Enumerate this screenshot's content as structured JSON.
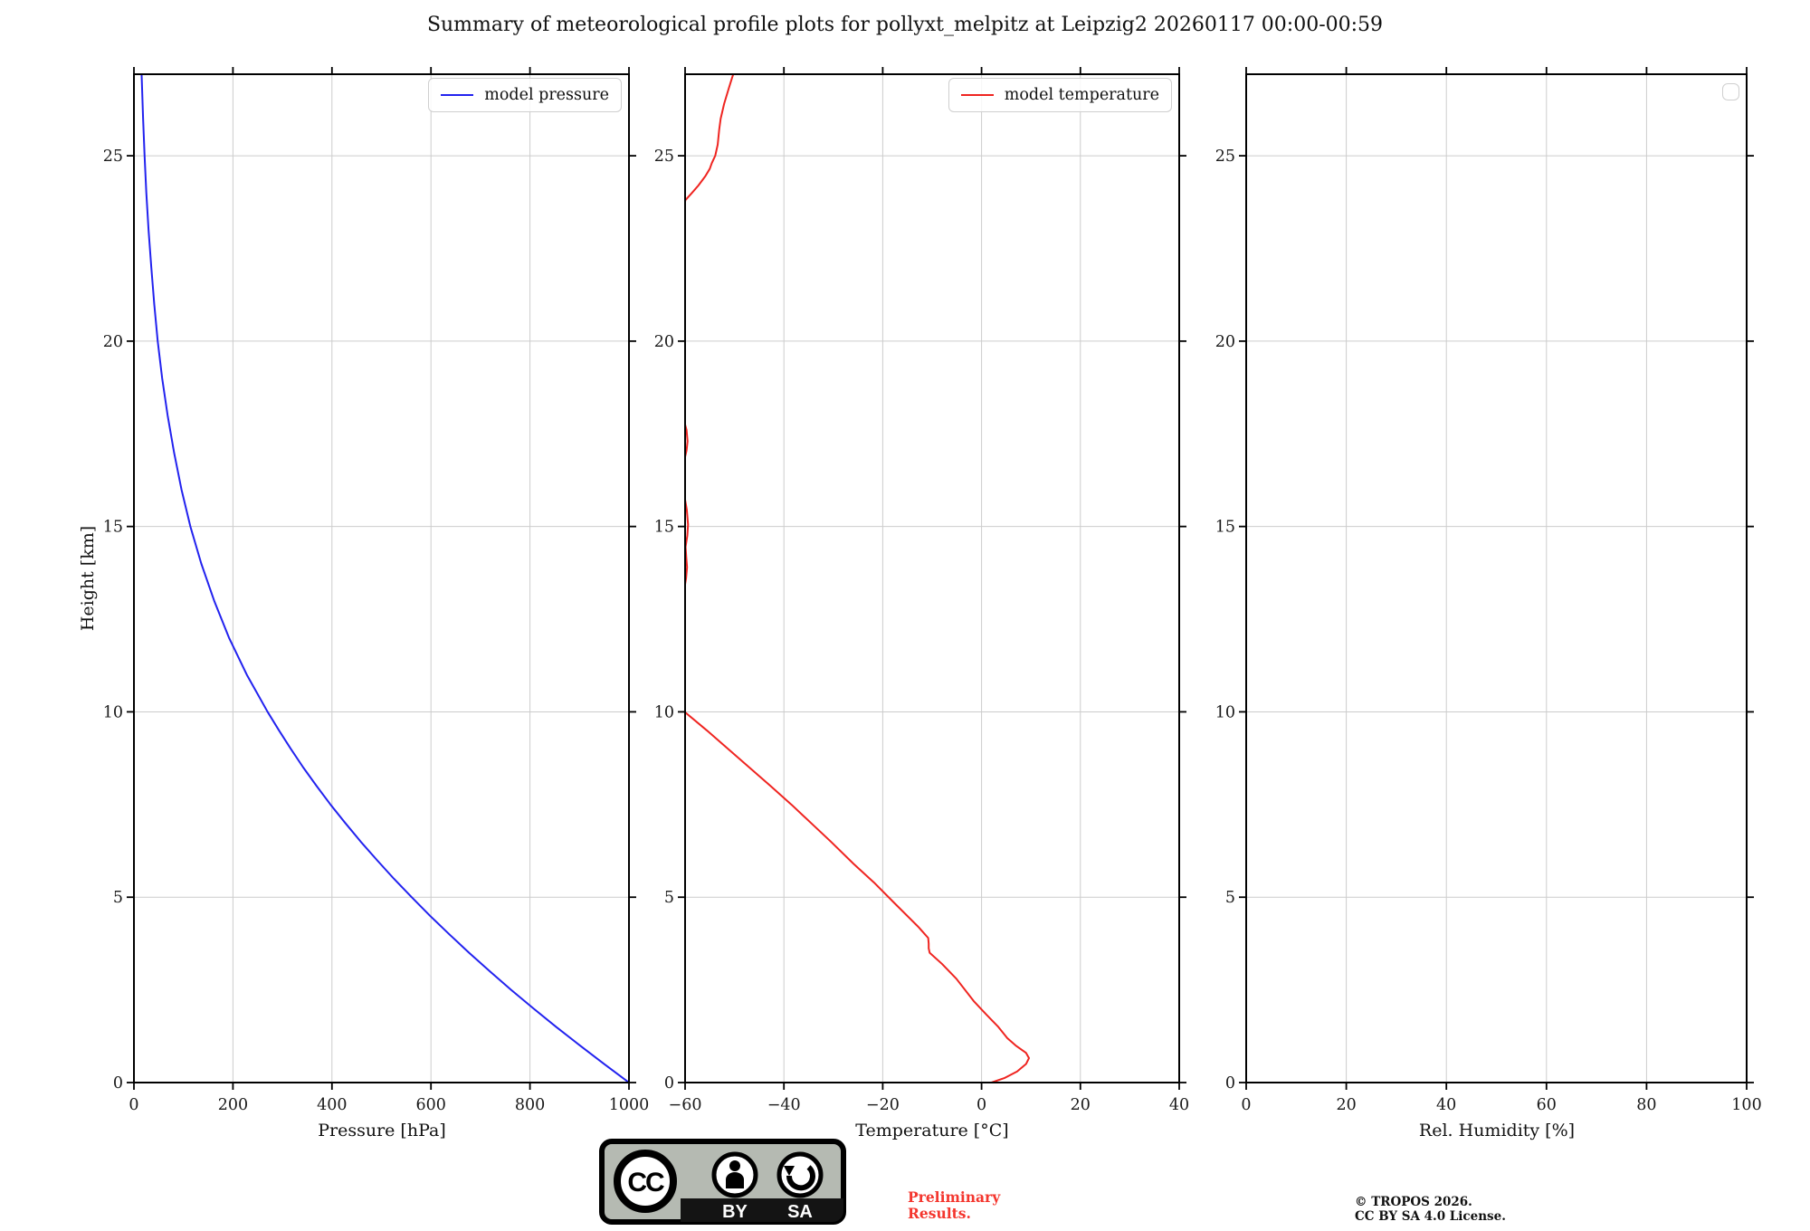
{
  "title": "Summary of meteorological profile plots for pollyxt_melpitz at Leipzig2 20260117 00:00-00:59",
  "colors": {
    "pressure_line": "#2222ef",
    "temperature_line": "#ef2420",
    "grid": "#cccccc",
    "spine": "#000000",
    "tick_label": "#1a1a1a",
    "preliminary_text": "#f4362e",
    "badge_gray": "#b5bab2",
    "badge_black": "#141414"
  },
  "footer": {
    "badge": {
      "cc": "CC",
      "by": "BY",
      "sa": "SA"
    },
    "preliminary_line1": "Preliminary",
    "preliminary_line2": "Results.",
    "copyright_line1": "© TROPOS 2026.",
    "copyright_line2": "CC BY SA 4.0 License."
  },
  "chart_data": [
    {
      "type": "line",
      "xlabel": "Pressure [hPa]",
      "ylabel": "Height [km]",
      "xlim": [
        0,
        1000
      ],
      "ylim": [
        0,
        27.2
      ],
      "xticks": [
        0,
        200,
        400,
        600,
        800,
        1000
      ],
      "yticks": [
        0,
        5,
        10,
        15,
        20,
        25
      ],
      "grid": true,
      "legend_position": "upper right",
      "legend": [
        {
          "label": "model pressure",
          "color": "#2222ef"
        }
      ],
      "series": [
        {
          "name": "model pressure",
          "color": "#2222ef",
          "height_km": [
            0,
            0.5,
            1,
            1.5,
            2,
            2.5,
            3,
            3.5,
            4,
            4.5,
            5,
            5.5,
            6,
            6.5,
            7,
            7.5,
            8,
            8.5,
            9,
            9.5,
            10,
            11,
            12,
            13,
            14,
            15,
            16,
            17,
            18,
            19,
            20,
            21,
            22,
            23,
            24,
            25,
            26,
            27,
            27.3
          ],
          "values": [
            1000,
            950,
            901,
            853,
            807,
            762,
            719,
            677,
            637,
            598,
            561,
            525,
            491,
            458,
            427,
            397,
            369,
            342,
            317,
            293,
            270,
            228,
            192,
            162,
            136,
            114,
            96,
            81,
            68,
            57,
            48,
            41,
            35,
            29.5,
            25,
            21.5,
            18.5,
            16,
            15.2
          ]
        }
      ]
    },
    {
      "type": "line",
      "xlabel": "Temperature [°C]",
      "ylabel": "",
      "xlim": [
        -60,
        40
      ],
      "ylim": [
        0,
        27.2
      ],
      "xticks": [
        -60,
        -40,
        -20,
        0,
        20,
        40
      ],
      "yticks": [
        0,
        5,
        10,
        15,
        20,
        25
      ],
      "grid": true,
      "legend_position": "upper right",
      "legend": [
        {
          "label": "model temperature",
          "color": "#ef2420"
        }
      ],
      "series": [
        {
          "name": "model temperature",
          "color": "#ef2420",
          "height_km": [
            0,
            0.12,
            0.3,
            0.5,
            0.66,
            0.8,
            1.0,
            1.2,
            1.5,
            1.83,
            2.2,
            2.8,
            3.2,
            3.5,
            3.62,
            3.75,
            3.9,
            4.2,
            4.85,
            5.4,
            5.9,
            6.5,
            7.0,
            7.5,
            8.0,
            8.5,
            9.0,
            9.5,
            10.0,
            10.4,
            11,
            12,
            13,
            13.4,
            13.6,
            13.9,
            14.15,
            14.45,
            14.75,
            15.05,
            15.45,
            15.8,
            16.2,
            16.6,
            16.85,
            17.05,
            17.3,
            17.6,
            17.8,
            18.3,
            19,
            20,
            21,
            22,
            23,
            23.5,
            23.8,
            24.0,
            24.2,
            24.45,
            24.65,
            24.8,
            25.0,
            25.3,
            25.7,
            26.0,
            26.4,
            26.8,
            27.1,
            27.3
          ],
          "values": [
            2,
            4.6,
            7.2,
            9.0,
            9.6,
            9.0,
            6.9,
            5.2,
            3.4,
            1.0,
            -1.6,
            -5.1,
            -8.0,
            -10.5,
            -10.7,
            -10.7,
            -10.8,
            -12.8,
            -17.7,
            -21.8,
            -25.9,
            -30.5,
            -34.5,
            -38.5,
            -42.7,
            -47.0,
            -51.3,
            -55.6,
            -60.1,
            -62,
            -63,
            -63.5,
            -61.5,
            -60.05,
            -59.8,
            -59.6,
            -59.75,
            -59.9,
            -59.55,
            -59.4,
            -59.65,
            -60.1,
            -60.6,
            -60.3,
            -60.05,
            -59.7,
            -59.5,
            -59.7,
            -60.1,
            -61,
            -62,
            -62.5,
            -62.8,
            -62,
            -61,
            -60.3,
            -59.95,
            -58.6,
            -57.3,
            -55.9,
            -55.0,
            -54.6,
            -53.9,
            -53.4,
            -53.1,
            -52.8,
            -52.1,
            -51.2,
            -50.5,
            -50.0
          ]
        }
      ]
    },
    {
      "type": "line",
      "xlabel": "Rel. Humidity [%]",
      "ylabel": "",
      "xlim": [
        0,
        100
      ],
      "ylim": [
        0,
        27.2
      ],
      "xticks": [
        0,
        20,
        40,
        60,
        80,
        100
      ],
      "yticks": [
        0,
        5,
        10,
        15,
        20,
        25
      ],
      "grid": true,
      "legend_position": "upper right",
      "legend": [],
      "series": []
    }
  ]
}
